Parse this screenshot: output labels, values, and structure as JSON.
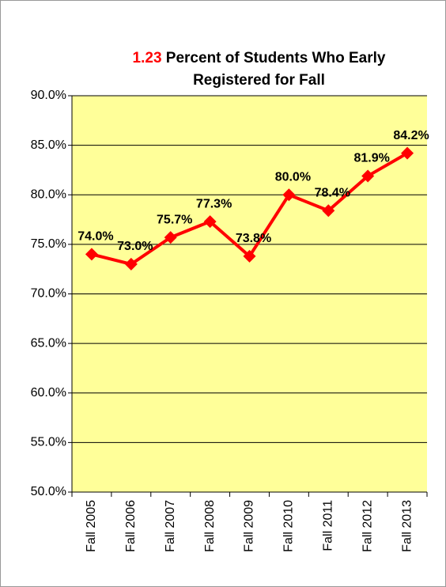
{
  "chart_data": {
    "type": "line",
    "title_number": "1.23",
    "title": "Percent of Students Who Early Registered for Fall",
    "categories": [
      "Fall 2005",
      "Fall 2006",
      "Fall 2007",
      "Fall 2008",
      "Fall 2009",
      "Fall 2010",
      "Fall 2011",
      "Fall 2012",
      "Fall 2013"
    ],
    "values": [
      74.0,
      73.0,
      75.7,
      77.3,
      73.8,
      80.0,
      78.4,
      81.9,
      84.2
    ],
    "value_labels": [
      "74.0%",
      "73.0%",
      "75.7%",
      "77.3%",
      "73.8%",
      "80.0%",
      "78.4%",
      "81.9%",
      "84.2%"
    ],
    "color": "#ff0000",
    "title_number_color": "#ff0000",
    "plot_background": "#ffff99",
    "ylim": [
      50,
      90
    ],
    "yticks": [
      {
        "value": 50,
        "label": "50.0%"
      },
      {
        "value": 55,
        "label": "55.0%"
      },
      {
        "value": 60,
        "label": "60.0%"
      },
      {
        "value": 65,
        "label": "65.0%"
      },
      {
        "value": 70,
        "label": "70.0%"
      },
      {
        "value": 75,
        "label": "75.0%"
      },
      {
        "value": 80,
        "label": "80.0%"
      },
      {
        "value": 85,
        "label": "85.0%"
      },
      {
        "value": 90,
        "label": "90.0%"
      }
    ],
    "grid": true
  }
}
